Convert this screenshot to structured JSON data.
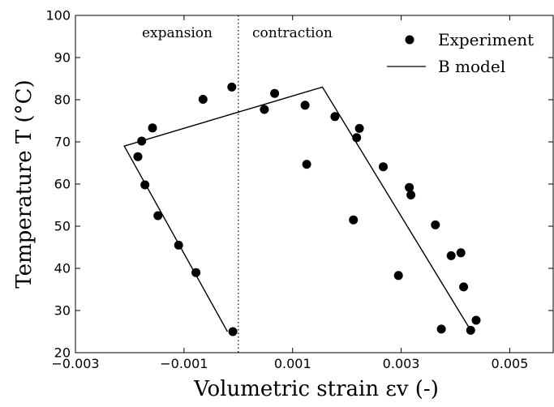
{
  "chart_data": {
    "type": "scatter",
    "xlabel": "Volumetric strain εv (-)",
    "ylabel": "Temperature T (°C)",
    "xlim": [
      -0.003,
      0.0058
    ],
    "ylim": [
      20,
      100
    ],
    "x_ticks": [
      -0.003,
      -0.001,
      0.001,
      0.003,
      0.005
    ],
    "x_tick_labels": [
      "−0.003",
      "−0.001",
      "0.001",
      "0.003",
      "0.005"
    ],
    "y_ticks": [
      20,
      30,
      40,
      50,
      60,
      70,
      80,
      90,
      100
    ],
    "y_tick_labels": [
      "20",
      "30",
      "40",
      "50",
      "60",
      "70",
      "80",
      "90",
      "100"
    ],
    "divider_x": 0,
    "region_labels": {
      "left": "expansion",
      "right": "contraction"
    },
    "legend": {
      "position": "top-right",
      "experiment_label": "Experiment",
      "model_label": "B model"
    },
    "series": [
      {
        "name": "Experiment",
        "kind": "scatter",
        "points": [
          [
            -0.00185,
            66.5
          ],
          [
            -0.00178,
            70.2
          ],
          [
            -0.00172,
            59.8
          ],
          [
            -0.00158,
            73.3
          ],
          [
            -0.00148,
            52.5
          ],
          [
            -0.0011,
            45.5
          ],
          [
            -0.00078,
            39.0
          ],
          [
            -0.00065,
            80.1
          ],
          [
            -0.00012,
            83.0
          ],
          [
            -0.0001,
            25.0
          ],
          [
            0.00048,
            77.7
          ],
          [
            0.00067,
            81.5
          ],
          [
            0.00123,
            78.7
          ],
          [
            0.00126,
            64.7
          ],
          [
            0.00178,
            76.0
          ],
          [
            0.00212,
            51.5
          ],
          [
            0.00218,
            71.0
          ],
          [
            0.00223,
            73.2
          ],
          [
            0.00267,
            64.1
          ],
          [
            0.00295,
            38.3
          ],
          [
            0.00315,
            59.2
          ],
          [
            0.00318,
            57.4
          ],
          [
            0.00363,
            50.3
          ],
          [
            0.00374,
            25.6
          ],
          [
            0.00392,
            43.0
          ],
          [
            0.0041,
            43.7
          ],
          [
            0.00415,
            35.6
          ],
          [
            0.00428,
            25.3
          ],
          [
            0.00438,
            27.7
          ]
        ]
      },
      {
        "name": "B model",
        "kind": "line",
        "points": [
          [
            -0.0002,
            25.0
          ],
          [
            -0.0021,
            69.0
          ],
          [
            0.00155,
            83.0
          ],
          [
            0.00428,
            25.3
          ]
        ]
      }
    ]
  }
}
